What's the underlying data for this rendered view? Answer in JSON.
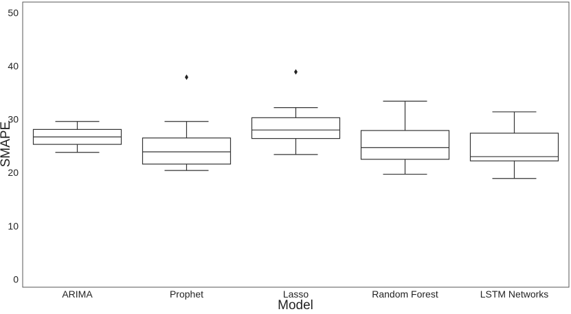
{
  "chart_data": {
    "type": "box",
    "title": "",
    "xlabel": "Model",
    "ylabel": "SMAPE",
    "ylim": [
      -1.5,
      52
    ],
    "yticks": [
      0,
      10,
      20,
      30,
      40,
      50
    ],
    "grid": false,
    "categories": [
      "ARIMA",
      "Prophet",
      "Lasso",
      "Random Forest",
      "LSTM Networks"
    ],
    "boxes": [
      {
        "category": "ARIMA",
        "whisker_low": 23.8,
        "q1": 25.3,
        "median": 26.7,
        "q3": 28.1,
        "whisker_high": 29.6,
        "outliers": []
      },
      {
        "category": "Prophet",
        "whisker_low": 20.4,
        "q1": 21.6,
        "median": 23.9,
        "q3": 26.5,
        "whisker_high": 29.6,
        "outliers": [
          37.9
        ]
      },
      {
        "category": "Lasso",
        "whisker_low": 23.4,
        "q1": 26.4,
        "median": 28.0,
        "q3": 30.3,
        "whisker_high": 32.2,
        "outliers": [
          38.9
        ]
      },
      {
        "category": "Random Forest",
        "whisker_low": 19.7,
        "q1": 22.5,
        "median": 24.7,
        "q3": 27.9,
        "whisker_high": 33.4,
        "outliers": []
      },
      {
        "category": "LSTM Networks",
        "whisker_low": 18.9,
        "q1": 22.2,
        "median": 23.0,
        "q3": 27.4,
        "whisker_high": 31.4,
        "outliers": []
      }
    ]
  }
}
